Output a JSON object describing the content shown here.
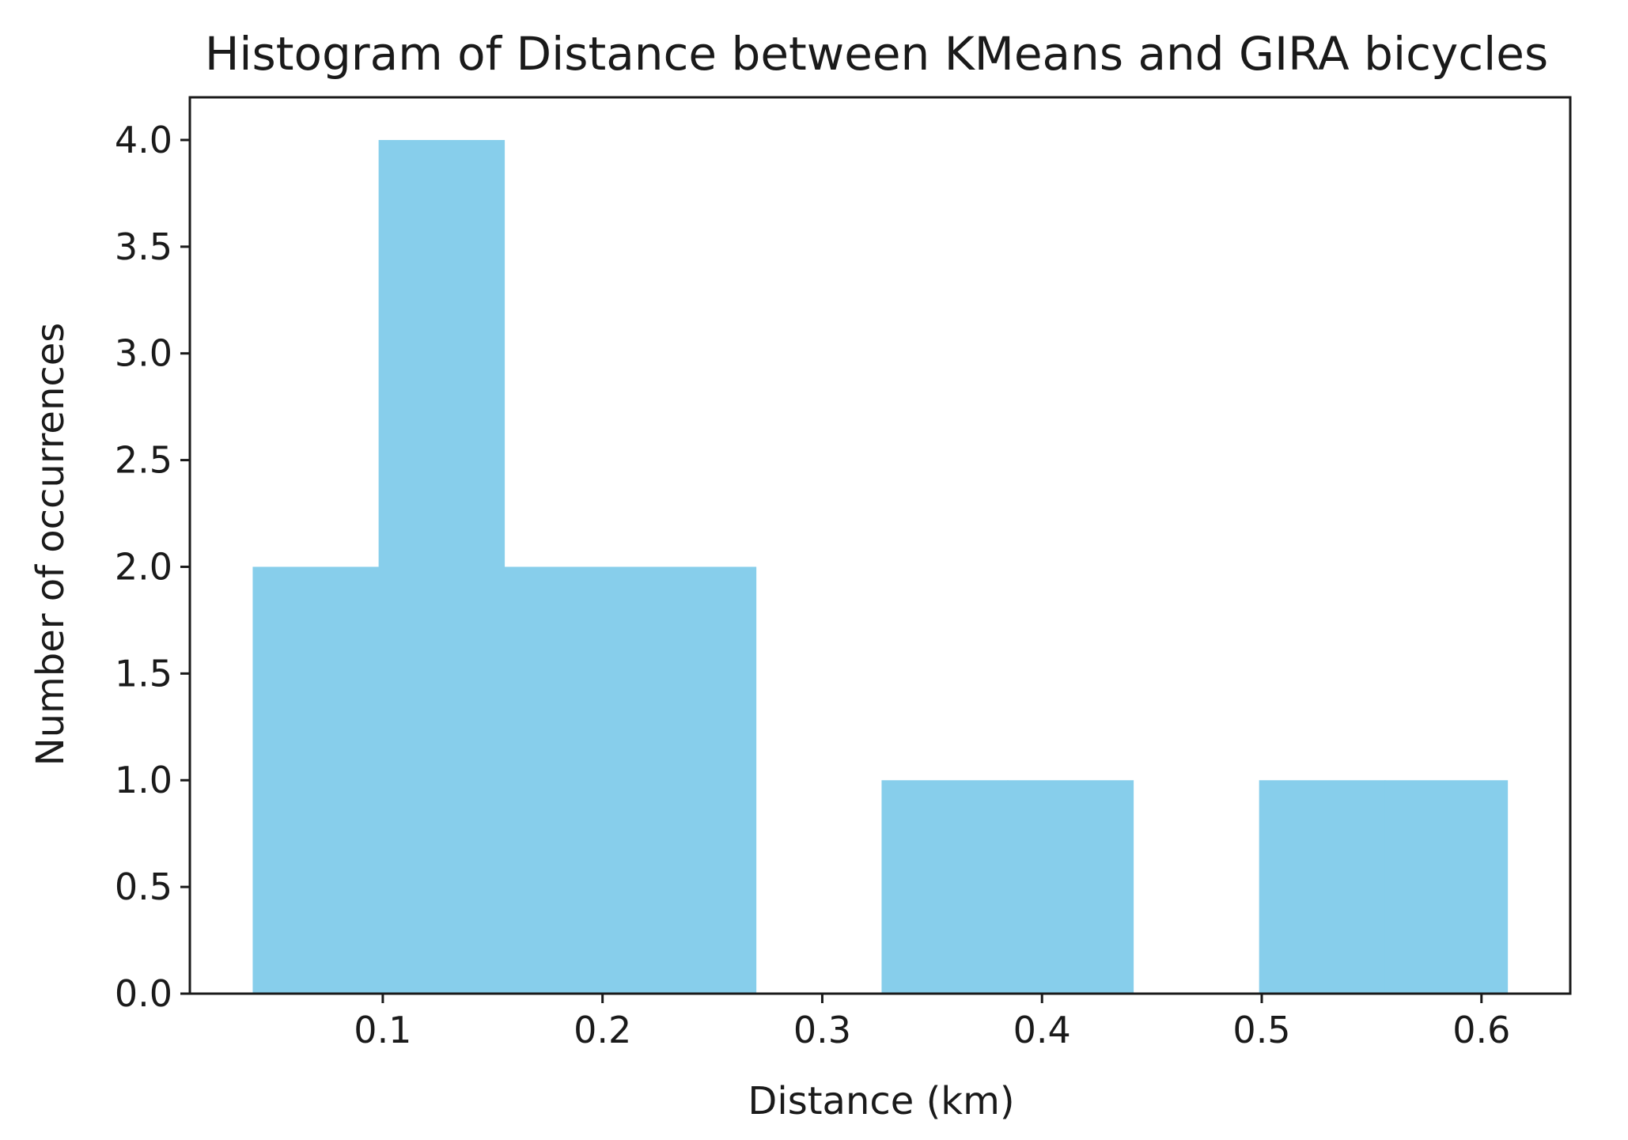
{
  "chart_data": {
    "type": "bar",
    "title": "Histogram of Distance between KMeans and GIRA bicycles",
    "xlabel": "Distance (km)",
    "ylabel": "Number of occurrences",
    "xlim": [
      0.0122,
      0.6404
    ],
    "ylim": [
      0,
      4.2
    ],
    "xticks": [
      "0.1",
      "0.2",
      "0.3",
      "0.4",
      "0.5",
      "0.6"
    ],
    "yticks": [
      "0.0",
      "0.5",
      "1.0",
      "1.5",
      "2.0",
      "2.5",
      "3.0",
      "3.5",
      "4.0"
    ],
    "bins": [
      {
        "x0": 0.0408,
        "x1": 0.0981,
        "count": 2
      },
      {
        "x0": 0.0981,
        "x1": 0.1553,
        "count": 4
      },
      {
        "x0": 0.1553,
        "x1": 0.2126,
        "count": 2
      },
      {
        "x0": 0.2126,
        "x1": 0.2698,
        "count": 2
      },
      {
        "x0": 0.2698,
        "x1": 0.327,
        "count": 0
      },
      {
        "x0": 0.327,
        "x1": 0.3843,
        "count": 1
      },
      {
        "x0": 0.3843,
        "x1": 0.4415,
        "count": 1
      },
      {
        "x0": 0.4415,
        "x1": 0.4988,
        "count": 0
      },
      {
        "x0": 0.4988,
        "x1": 0.556,
        "count": 1
      },
      {
        "x0": 0.556,
        "x1": 0.6118,
        "count": 1
      }
    ],
    "bar_color": "#87ceeb",
    "grid": false
  }
}
